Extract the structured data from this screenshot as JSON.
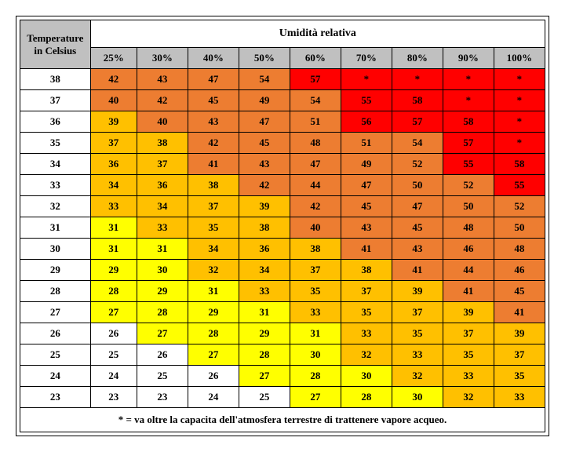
{
  "colors": {
    "white": "#ffffff",
    "yellow": "#ffff00",
    "orange": "#ffc000",
    "dorange": "#ed7d31",
    "red": "#ff0000",
    "header_bg": "#c0c0c0",
    "text": "#000000"
  },
  "header": {
    "corner": "Temperature in Celsius",
    "main": "Umidità relativa",
    "columns": [
      "25%",
      "30%",
      "40%",
      "50%",
      "60%",
      "70%",
      "80%",
      "90%",
      "100%"
    ]
  },
  "row_labels": [
    "38",
    "37",
    "36",
    "35",
    "34",
    "33",
    "32",
    "31",
    "30",
    "29",
    "28",
    "27",
    "26",
    "25",
    "24",
    "23"
  ],
  "cells": [
    [
      {
        "v": "42",
        "c": "dorange"
      },
      {
        "v": "43",
        "c": "dorange"
      },
      {
        "v": "47",
        "c": "dorange"
      },
      {
        "v": "54",
        "c": "dorange"
      },
      {
        "v": "57",
        "c": "red"
      },
      {
        "v": "*",
        "c": "red"
      },
      {
        "v": "*",
        "c": "red"
      },
      {
        "v": "*",
        "c": "red"
      },
      {
        "v": "*",
        "c": "red"
      }
    ],
    [
      {
        "v": "40",
        "c": "dorange"
      },
      {
        "v": "42",
        "c": "dorange"
      },
      {
        "v": "45",
        "c": "dorange"
      },
      {
        "v": "49",
        "c": "dorange"
      },
      {
        "v": "54",
        "c": "dorange"
      },
      {
        "v": "55",
        "c": "red"
      },
      {
        "v": "58",
        "c": "red"
      },
      {
        "v": "*",
        "c": "red"
      },
      {
        "v": "*",
        "c": "red"
      }
    ],
    [
      {
        "v": "39",
        "c": "orange"
      },
      {
        "v": "40",
        "c": "dorange"
      },
      {
        "v": "43",
        "c": "dorange"
      },
      {
        "v": "47",
        "c": "dorange"
      },
      {
        "v": "51",
        "c": "dorange"
      },
      {
        "v": "56",
        "c": "red"
      },
      {
        "v": "57",
        "c": "red"
      },
      {
        "v": "58",
        "c": "red"
      },
      {
        "v": "*",
        "c": "red"
      }
    ],
    [
      {
        "v": "37",
        "c": "orange"
      },
      {
        "v": "38",
        "c": "orange"
      },
      {
        "v": "42",
        "c": "dorange"
      },
      {
        "v": "45",
        "c": "dorange"
      },
      {
        "v": "48",
        "c": "dorange"
      },
      {
        "v": "51",
        "c": "dorange"
      },
      {
        "v": "54",
        "c": "dorange"
      },
      {
        "v": "57",
        "c": "red"
      },
      {
        "v": "*",
        "c": "red"
      }
    ],
    [
      {
        "v": "36",
        "c": "orange"
      },
      {
        "v": "37",
        "c": "orange"
      },
      {
        "v": "41",
        "c": "dorange"
      },
      {
        "v": "43",
        "c": "dorange"
      },
      {
        "v": "47",
        "c": "dorange"
      },
      {
        "v": "49",
        "c": "dorange"
      },
      {
        "v": "52",
        "c": "dorange"
      },
      {
        "v": "55",
        "c": "red"
      },
      {
        "v": "58",
        "c": "red"
      }
    ],
    [
      {
        "v": "34",
        "c": "orange"
      },
      {
        "v": "36",
        "c": "orange"
      },
      {
        "v": "38",
        "c": "orange"
      },
      {
        "v": "42",
        "c": "dorange"
      },
      {
        "v": "44",
        "c": "dorange"
      },
      {
        "v": "47",
        "c": "dorange"
      },
      {
        "v": "50",
        "c": "dorange"
      },
      {
        "v": "52",
        "c": "dorange"
      },
      {
        "v": "55",
        "c": "red"
      }
    ],
    [
      {
        "v": "33",
        "c": "orange"
      },
      {
        "v": "34",
        "c": "orange"
      },
      {
        "v": "37",
        "c": "orange"
      },
      {
        "v": "39",
        "c": "orange"
      },
      {
        "v": "42",
        "c": "dorange"
      },
      {
        "v": "45",
        "c": "dorange"
      },
      {
        "v": "47",
        "c": "dorange"
      },
      {
        "v": "50",
        "c": "dorange"
      },
      {
        "v": "52",
        "c": "dorange"
      }
    ],
    [
      {
        "v": "31",
        "c": "yellow"
      },
      {
        "v": "33",
        "c": "orange"
      },
      {
        "v": "35",
        "c": "orange"
      },
      {
        "v": "38",
        "c": "orange"
      },
      {
        "v": "40",
        "c": "dorange"
      },
      {
        "v": "43",
        "c": "dorange"
      },
      {
        "v": "45",
        "c": "dorange"
      },
      {
        "v": "48",
        "c": "dorange"
      },
      {
        "v": "50",
        "c": "dorange"
      }
    ],
    [
      {
        "v": "31",
        "c": "yellow"
      },
      {
        "v": "31",
        "c": "yellow"
      },
      {
        "v": "34",
        "c": "orange"
      },
      {
        "v": "36",
        "c": "orange"
      },
      {
        "v": "38",
        "c": "orange"
      },
      {
        "v": "41",
        "c": "dorange"
      },
      {
        "v": "43",
        "c": "dorange"
      },
      {
        "v": "46",
        "c": "dorange"
      },
      {
        "v": "48",
        "c": "dorange"
      }
    ],
    [
      {
        "v": "29",
        "c": "yellow"
      },
      {
        "v": "30",
        "c": "yellow"
      },
      {
        "v": "32",
        "c": "orange"
      },
      {
        "v": "34",
        "c": "orange"
      },
      {
        "v": "37",
        "c": "orange"
      },
      {
        "v": "38",
        "c": "orange"
      },
      {
        "v": "41",
        "c": "dorange"
      },
      {
        "v": "44",
        "c": "dorange"
      },
      {
        "v": "46",
        "c": "dorange"
      }
    ],
    [
      {
        "v": "28",
        "c": "yellow"
      },
      {
        "v": "29",
        "c": "yellow"
      },
      {
        "v": "31",
        "c": "yellow"
      },
      {
        "v": "33",
        "c": "orange"
      },
      {
        "v": "35",
        "c": "orange"
      },
      {
        "v": "37",
        "c": "orange"
      },
      {
        "v": "39",
        "c": "orange"
      },
      {
        "v": "41",
        "c": "dorange"
      },
      {
        "v": "45",
        "c": "dorange"
      }
    ],
    [
      {
        "v": "27",
        "c": "yellow"
      },
      {
        "v": "28",
        "c": "yellow"
      },
      {
        "v": "29",
        "c": "yellow"
      },
      {
        "v": "31",
        "c": "yellow"
      },
      {
        "v": "33",
        "c": "orange"
      },
      {
        "v": "35",
        "c": "orange"
      },
      {
        "v": "37",
        "c": "orange"
      },
      {
        "v": "39",
        "c": "orange"
      },
      {
        "v": "41",
        "c": "dorange"
      }
    ],
    [
      {
        "v": "26",
        "c": "white"
      },
      {
        "v": "27",
        "c": "yellow"
      },
      {
        "v": "28",
        "c": "yellow"
      },
      {
        "v": "29",
        "c": "yellow"
      },
      {
        "v": "31",
        "c": "yellow"
      },
      {
        "v": "33",
        "c": "orange"
      },
      {
        "v": "35",
        "c": "orange"
      },
      {
        "v": "37",
        "c": "orange"
      },
      {
        "v": "39",
        "c": "orange"
      }
    ],
    [
      {
        "v": "25",
        "c": "white"
      },
      {
        "v": "26",
        "c": "white"
      },
      {
        "v": "27",
        "c": "yellow"
      },
      {
        "v": "28",
        "c": "yellow"
      },
      {
        "v": "30",
        "c": "yellow"
      },
      {
        "v": "32",
        "c": "orange"
      },
      {
        "v": "33",
        "c": "orange"
      },
      {
        "v": "35",
        "c": "orange"
      },
      {
        "v": "37",
        "c": "orange"
      }
    ],
    [
      {
        "v": "24",
        "c": "white"
      },
      {
        "v": "25",
        "c": "white"
      },
      {
        "v": "26",
        "c": "white"
      },
      {
        "v": "27",
        "c": "yellow"
      },
      {
        "v": "28",
        "c": "yellow"
      },
      {
        "v": "30",
        "c": "yellow"
      },
      {
        "v": "32",
        "c": "orange"
      },
      {
        "v": "33",
        "c": "orange"
      },
      {
        "v": "35",
        "c": "orange"
      }
    ],
    [
      {
        "v": "23",
        "c": "white"
      },
      {
        "v": "23",
        "c": "white"
      },
      {
        "v": "24",
        "c": "white"
      },
      {
        "v": "25",
        "c": "white"
      },
      {
        "v": "27",
        "c": "yellow"
      },
      {
        "v": "28",
        "c": "yellow"
      },
      {
        "v": "30",
        "c": "yellow"
      },
      {
        "v": "32",
        "c": "orange"
      },
      {
        "v": "33",
        "c": "orange"
      }
    ]
  ],
  "footnote": "* = va oltre la capacita dell'atmosfera terrestre di trattenere vapore acqueo."
}
